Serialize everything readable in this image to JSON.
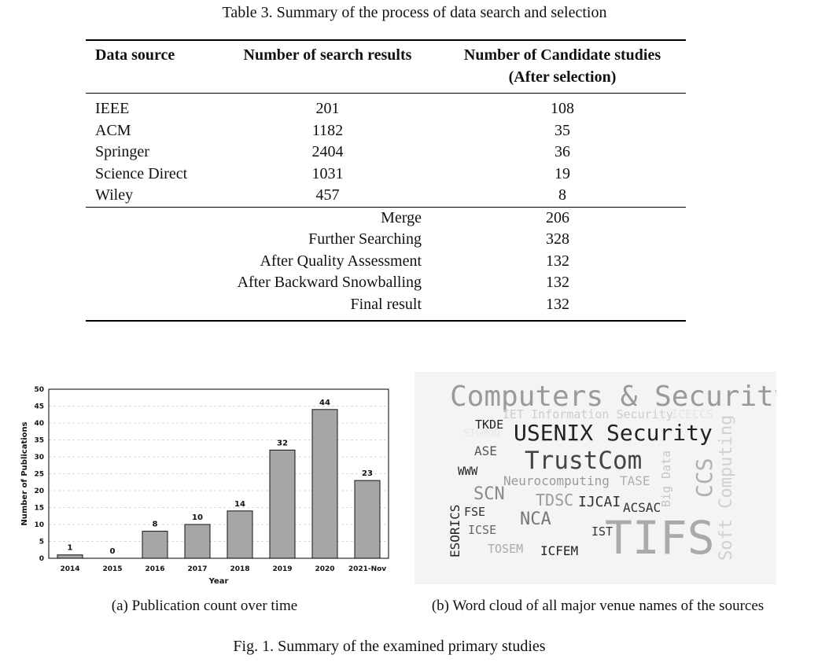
{
  "table": {
    "caption": "Table 3.  Summary of the process of data search and selection",
    "headers": {
      "source": "Data source",
      "results": "Number of search results",
      "candidates_line1": "Number of Candidate studies",
      "candidates_line2": "(After selection)"
    },
    "rows": [
      {
        "source": "IEEE",
        "results": "201",
        "candidates": "108"
      },
      {
        "source": "ACM",
        "results": "1182",
        "candidates": "35"
      },
      {
        "source": "Springer",
        "results": "2404",
        "candidates": "36"
      },
      {
        "source": "Science Direct",
        "results": "1031",
        "candidates": "19"
      },
      {
        "source": "Wiley",
        "results": "457",
        "candidates": "8"
      }
    ],
    "summary_rows": [
      {
        "label": "Merge",
        "value": "206"
      },
      {
        "label": "Further Searching",
        "value": "328"
      },
      {
        "label": "After Quality Assessment",
        "value": "132"
      },
      {
        "label": "After Backward Snowballing",
        "value": "132"
      },
      {
        "label": "Final result",
        "value": "132"
      }
    ]
  },
  "chart_data": {
    "type": "bar",
    "categories": [
      "2014",
      "2015",
      "2016",
      "2017",
      "2018",
      "2019",
      "2020",
      "2021-Nov"
    ],
    "values": [
      1,
      0,
      8,
      10,
      14,
      32,
      44,
      23
    ],
    "xlabel": "Year",
    "ylabel": "Number of Publications",
    "ylim": [
      0,
      50
    ],
    "yticks": [
      0,
      5,
      10,
      15,
      20,
      25,
      30,
      35,
      40,
      45,
      50
    ],
    "grid": true,
    "bar_color": "#a6a6a6"
  },
  "wordcloud": {
    "words": [
      {
        "text": "Computers & Security",
        "color": "#9a9a9a"
      },
      {
        "text": "IET Information Security",
        "color": "#cdcdcd"
      },
      {
        "text": "ICECCS",
        "color": "#e4e4e4"
      },
      {
        "text": "TKDE",
        "color": "#222222"
      },
      {
        "text": "SIGMOD",
        "color": "#e6e6e6"
      },
      {
        "text": "USENIX Security",
        "color": "#222222"
      },
      {
        "text": "ASE",
        "color": "#555555"
      },
      {
        "text": "TrustCom",
        "color": "#444444"
      },
      {
        "text": "WWW",
        "color": "#222222"
      },
      {
        "text": "Neurocomputing",
        "color": "#9a9a9a"
      },
      {
        "text": "TASE",
        "color": "#b0b0b0"
      },
      {
        "text": "SCN",
        "color": "#8a8a8a"
      },
      {
        "text": "TDSC",
        "color": "#9a9a9a"
      },
      {
        "text": "IJCAI",
        "color": "#333333"
      },
      {
        "text": "ACSAC",
        "color": "#333333"
      },
      {
        "text": "FSE",
        "color": "#333333"
      },
      {
        "text": "NCA",
        "color": "#777777"
      },
      {
        "text": "ICSE",
        "color": "#666666"
      },
      {
        "text": "IST",
        "color": "#333333"
      },
      {
        "text": "TIFS",
        "color": "#aaaaaa"
      },
      {
        "text": "TOSEM",
        "color": "#aaaaaa"
      },
      {
        "text": "ICFEM",
        "color": "#222222"
      },
      {
        "text": "ESORICS",
        "color": "#222222"
      },
      {
        "text": "Big Data",
        "color": "#c6c6c6"
      },
      {
        "text": "CCS",
        "color": "#b0b0b0"
      },
      {
        "text": "Soft Computing",
        "color": "#d0d0d0"
      }
    ]
  },
  "subcaptions": {
    "a": "(a) Publication count over time",
    "b": "(b) Word cloud of all major venue names of the sources"
  },
  "figure_caption": "Fig. 1.  Summary of the examined primary studies"
}
